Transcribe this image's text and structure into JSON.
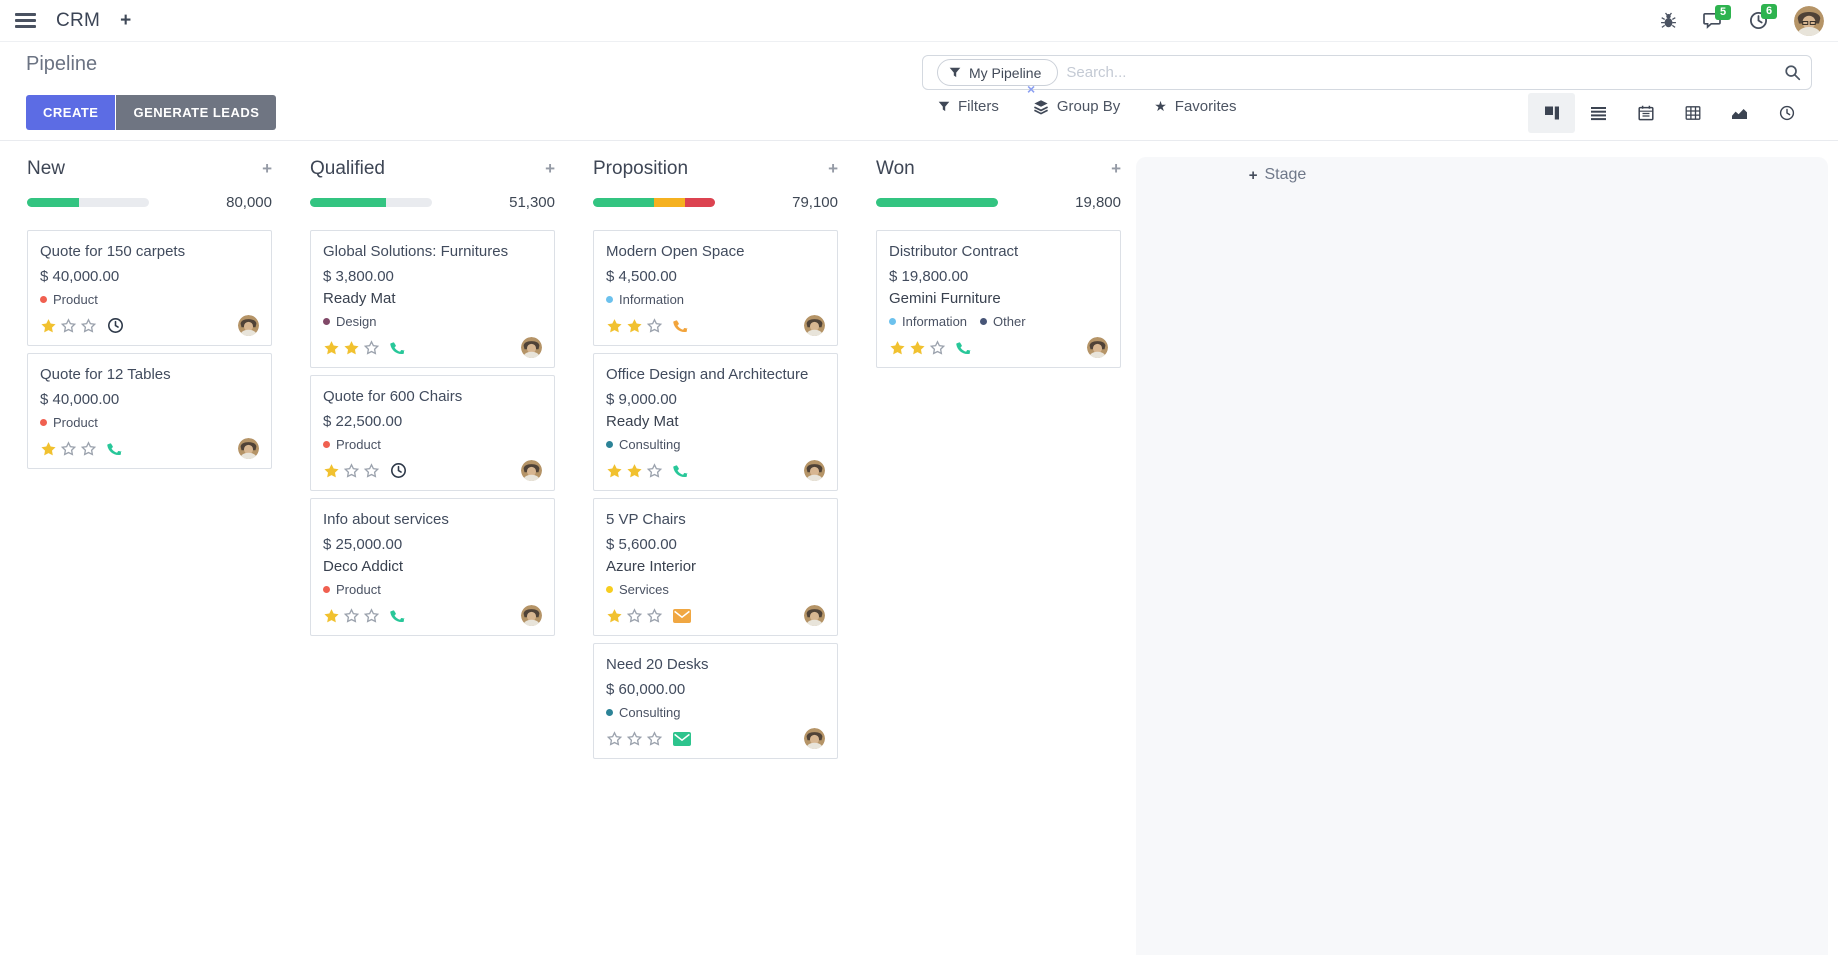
{
  "navbar": {
    "app_name": "CRM",
    "add_label": "+",
    "messages_badge": "5",
    "activities_badge": "6",
    "icons": [
      "menu-icon",
      "bug-icon",
      "messages-icon",
      "activities-clock-icon",
      "user-avatar"
    ]
  },
  "control_panel": {
    "title": "Pipeline",
    "create_label": "CREATE",
    "generate_leads_label": "GENERATE LEADS",
    "search": {
      "facet": "My Pipeline",
      "remove_symbol": "×",
      "placeholder": "Search..."
    },
    "filters_label": "Filters",
    "group_by_label": "Group By",
    "favorites_label": "Favorites",
    "view_switcher": [
      "kanban",
      "list",
      "calendar",
      "pivot",
      "graph",
      "activity"
    ],
    "active_view": "kanban"
  },
  "colors": {
    "accent": "#5c6ce4",
    "secondary_button": "#6f7582",
    "badge_green": "#2eb34f",
    "progress_green": "#33c481",
    "progress_yellow": "#f5b120",
    "progress_red": "#dc4350",
    "star_gold": "#f1c12f"
  },
  "board": {
    "add_stage_plus": "+",
    "add_stage_label": "Stage",
    "columns": [
      {
        "title": "New",
        "total": "80,000",
        "progress": [
          {
            "color": "#33c481",
            "pct": 43
          }
        ],
        "cards": [
          {
            "title": "Quote for 150 carpets",
            "amount": "$ 40,000.00",
            "partner": "",
            "tags": [
              {
                "label": "Product",
                "color": "#F06050"
              }
            ],
            "stars": 1,
            "activity": {
              "type": "clock",
              "color": "#2f3a4a"
            }
          },
          {
            "title": "Quote for 12 Tables",
            "amount": "$ 40,000.00",
            "partner": "",
            "tags": [
              {
                "label": "Product",
                "color": "#F06050"
              }
            ],
            "stars": 1,
            "activity": {
              "type": "phone",
              "color": "#28c799"
            }
          }
        ]
      },
      {
        "title": "Qualified",
        "total": "51,300",
        "progress": [
          {
            "color": "#33c481",
            "pct": 62
          }
        ],
        "cards": [
          {
            "title": "Global Solutions: Furnitures",
            "amount": "$ 3,800.00",
            "partner": "Ready Mat",
            "tags": [
              {
                "label": "Design",
                "color": "#814968"
              }
            ],
            "stars": 2,
            "activity": {
              "type": "phone",
              "color": "#28c799"
            }
          },
          {
            "title": "Quote for 600 Chairs",
            "amount": "$ 22,500.00",
            "partner": "",
            "tags": [
              {
                "label": "Product",
                "color": "#F06050"
              }
            ],
            "stars": 1,
            "activity": {
              "type": "clock",
              "color": "#2f3a4a"
            }
          },
          {
            "title": "Info about services",
            "amount": "$ 25,000.00",
            "partner": "Deco Addict",
            "tags": [
              {
                "label": "Product",
                "color": "#F06050"
              }
            ],
            "stars": 1,
            "activity": {
              "type": "phone",
              "color": "#28c799"
            }
          }
        ]
      },
      {
        "title": "Proposition",
        "total": "79,100",
        "progress": [
          {
            "color": "#33c481",
            "pct": 50
          },
          {
            "color": "#f5b120",
            "pct": 25
          },
          {
            "color": "#dc4350",
            "pct": 25
          }
        ],
        "cards": [
          {
            "title": "Modern Open Space",
            "amount": "$ 4,500.00",
            "partner": "",
            "tags": [
              {
                "label": "Information",
                "color": "#6CC1ED"
              }
            ],
            "stars": 2,
            "activity": {
              "type": "phone",
              "color": "#f2a43c"
            }
          },
          {
            "title": "Office Design and Architecture",
            "amount": "$ 9,000.00",
            "partner": "Ready Mat",
            "tags": [
              {
                "label": "Consulting",
                "color": "#2C8397"
              }
            ],
            "stars": 2,
            "activity": {
              "type": "phone",
              "color": "#28c799"
            }
          },
          {
            "title": "5 VP Chairs",
            "amount": "$ 5,600.00",
            "partner": "Azure Interior",
            "tags": [
              {
                "label": "Services",
                "color": "#F7CD1F"
              }
            ],
            "stars": 1,
            "activity": {
              "type": "envelope",
              "color": "#f0a742"
            }
          },
          {
            "title": "Need 20 Desks",
            "amount": "$ 60,000.00",
            "partner": "",
            "tags": [
              {
                "label": "Consulting",
                "color": "#2C8397"
              }
            ],
            "stars": 0,
            "activity": {
              "type": "envelope",
              "color": "#2dc48d"
            }
          }
        ]
      },
      {
        "title": "Won",
        "total": "19,800",
        "progress": [
          {
            "color": "#33c481",
            "pct": 100
          }
        ],
        "cards": [
          {
            "title": "Distributor Contract",
            "amount": "$ 19,800.00",
            "partner": "Gemini Furniture",
            "tags": [
              {
                "label": "Information",
                "color": "#6CC1ED"
              },
              {
                "label": "Other",
                "color": "#475577"
              }
            ],
            "stars": 2,
            "activity": {
              "type": "phone",
              "color": "#28c799"
            }
          }
        ]
      }
    ]
  }
}
